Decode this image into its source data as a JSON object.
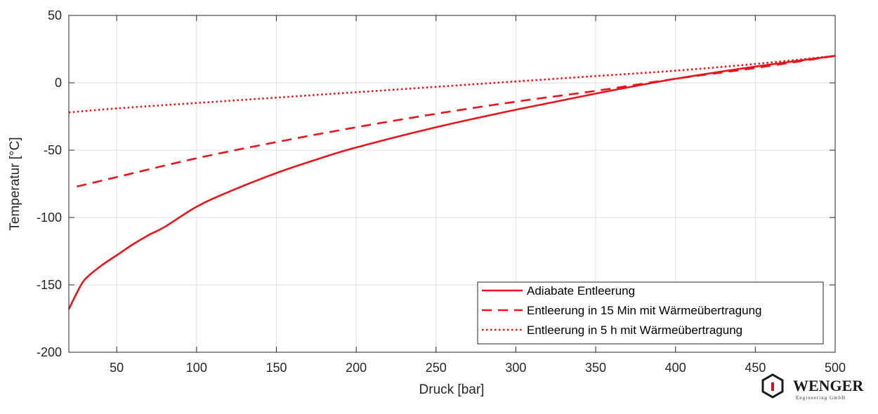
{
  "chart_data": {
    "type": "line",
    "xlabel": "Druck [bar]",
    "ylabel": "Temperatur [°C]",
    "xlim": [
      20,
      500
    ],
    "ylim": [
      -200,
      50
    ],
    "xticks": [
      50,
      100,
      150,
      200,
      250,
      300,
      350,
      400,
      450,
      500
    ],
    "yticks": [
      -200,
      -150,
      -100,
      -50,
      0,
      50
    ],
    "grid": true,
    "legend_position": "bottom-right",
    "series": [
      {
        "name": "Adiabate Entleerung",
        "style": "solid",
        "color": "#e8141a",
        "x": [
          20,
          25,
          30,
          40,
          50,
          60,
          70,
          80,
          100,
          120,
          150,
          175,
          200,
          250,
          300,
          350,
          400,
          450,
          500
        ],
        "y": [
          -168,
          -156,
          -146,
          -136,
          -128,
          -120,
          -113,
          -107,
          -92,
          -81,
          -67,
          -57,
          -48,
          -33,
          -20,
          -8,
          3,
          12,
          20
        ]
      },
      {
        "name": "Entleerung in 15 Min mit Wärmeübertragung",
        "style": "dashed",
        "color": "#e8141a",
        "x": [
          25,
          50,
          100,
          150,
          200,
          250,
          300,
          350,
          400,
          450,
          500
        ],
        "y": [
          -77,
          -70,
          -56,
          -44,
          -33,
          -23,
          -14,
          -6,
          3,
          11,
          20
        ]
      },
      {
        "name": "Entleerung in 5 h mit Wärmeübertragung",
        "style": "dotted",
        "color": "#e8141a",
        "x": [
          20,
          50,
          100,
          150,
          200,
          250,
          300,
          350,
          400,
          450,
          500
        ],
        "y": [
          -22,
          -19,
          -15,
          -11,
          -7,
          -3,
          1,
          5,
          9,
          14,
          20
        ]
      }
    ]
  },
  "logo": {
    "name": "WENGER",
    "subtitle": "Engineering GmbH"
  }
}
